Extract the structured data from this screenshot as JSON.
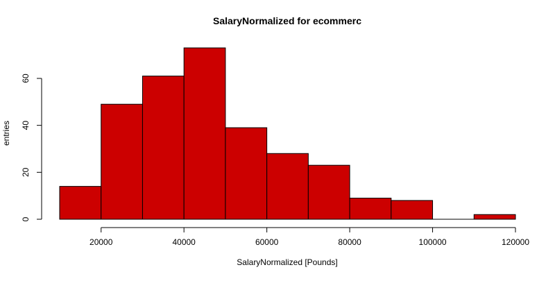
{
  "chart_data": {
    "type": "bar",
    "title": "SalaryNormalized for ecommerc",
    "xlabel": "SalaryNormalized [Pounds]",
    "ylabel": "entries",
    "bin_edges": [
      10000,
      20000,
      30000,
      40000,
      50000,
      60000,
      70000,
      80000,
      90000,
      100000,
      110000,
      120000
    ],
    "values": [
      14,
      49,
      61,
      73,
      39,
      28,
      23,
      9,
      8,
      0,
      2
    ],
    "xlim": [
      10000,
      120000
    ],
    "ylim": [
      0,
      73
    ],
    "x_ticks": [
      20000,
      40000,
      60000,
      80000,
      100000,
      120000
    ],
    "y_ticks": [
      0,
      20,
      40,
      60
    ],
    "grid": false,
    "bar_color": "#cc0000",
    "edge_color": "#000000"
  }
}
